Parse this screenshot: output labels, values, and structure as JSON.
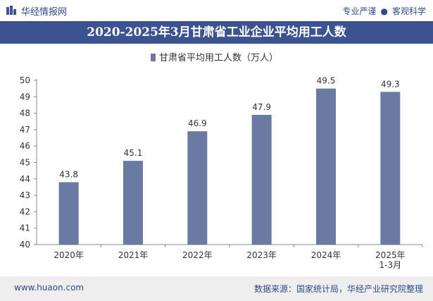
{
  "header": {
    "logo_text": "华经情报网",
    "slogan_left": "专业严谨",
    "slogan_right": "客观科学"
  },
  "colors": {
    "brand": "#3d5290",
    "bar": "#6b7aa3",
    "footer_bg": "#eeeeee"
  },
  "chart_data": {
    "type": "bar",
    "title": "2020-2025年3月甘肃省工业企业平均用工人数",
    "legend": "甘肃省平均用工人数（万人）",
    "categories": [
      "2020年",
      "2021年",
      "2022年",
      "2023年",
      "2024年",
      "2025年\n1-3月"
    ],
    "values": [
      43.8,
      45.1,
      46.9,
      47.9,
      49.5,
      49.3
    ],
    "value_labels": [
      "43.8",
      "45.1",
      "46.9",
      "47.9",
      "49.5",
      "49.3"
    ],
    "ylim": [
      40,
      50
    ],
    "yticks": [
      40,
      41,
      42,
      43,
      44,
      45,
      46,
      47,
      48,
      49,
      50
    ],
    "xlabel": "",
    "ylabel": "",
    "grid": false
  },
  "footer": {
    "website": "www.huaon.com",
    "source": "数据来源：国家统计局，华经产业研究院整理"
  }
}
